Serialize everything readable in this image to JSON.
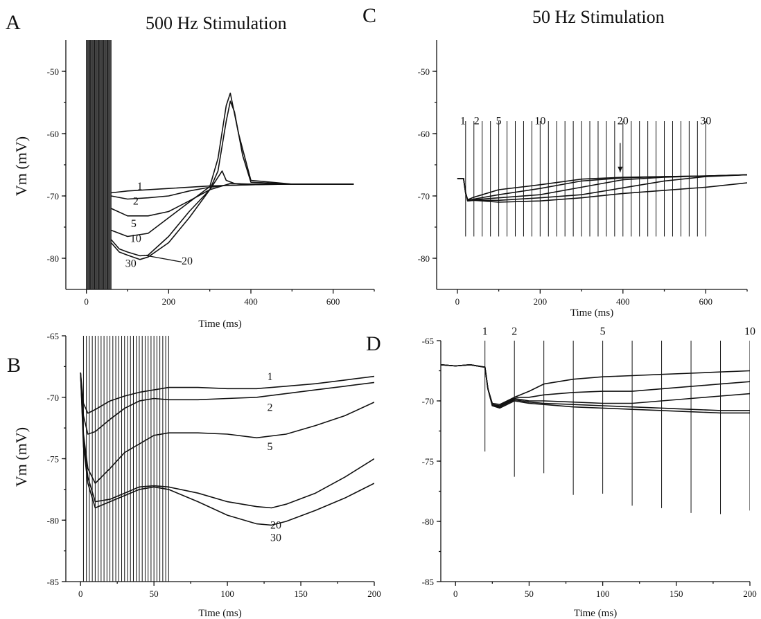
{
  "figure": {
    "column_titles": [
      "500 Hz Stimulation",
      "50 Hz Stimulation"
    ]
  },
  "chart_data": [
    {
      "panel": "A",
      "type": "line",
      "column_title": "500 Hz Stimulation",
      "xlabel": "Time (ms)",
      "ylabel": "Vm (mV)",
      "xlim": [
        -50,
        700
      ],
      "ylim": [
        -85,
        -45
      ],
      "xticks": [
        0,
        200,
        400,
        600
      ],
      "yticks": [
        -50,
        -60,
        -70,
        -80
      ],
      "stim_train": {
        "start": 0,
        "end": 60,
        "interval": 2,
        "peak": -45,
        "trough": -85
      },
      "series": [
        {
          "name": "1",
          "x": [
            60,
            100,
            200,
            300,
            400,
            500,
            650
          ],
          "y": [
            -69.5,
            -69.2,
            -68.8,
            -68.4,
            -68.2,
            -68.1,
            -68.1
          ]
        },
        {
          "name": "2",
          "x": [
            60,
            100,
            150,
            200,
            250,
            300,
            340,
            400,
            500,
            650
          ],
          "y": [
            -70.0,
            -70.5,
            -70.3,
            -70.0,
            -69.2,
            -68.6,
            -68.3,
            -68.2,
            -68.1,
            -68.1
          ]
        },
        {
          "name": "5",
          "x": [
            60,
            100,
            150,
            200,
            250,
            300,
            350,
            400,
            500,
            650
          ],
          "y": [
            -72.0,
            -73.2,
            -73.2,
            -72.5,
            -70.8,
            -69.0,
            -68.0,
            -68.1,
            -68.1,
            -68.1
          ]
        },
        {
          "name": "10",
          "x": [
            60,
            80,
            100,
            150,
            200,
            250,
            300,
            320,
            340,
            350,
            370,
            400,
            500,
            650
          ],
          "y": [
            -75.5,
            -76.0,
            -76.5,
            -76.0,
            -73.5,
            -71.0,
            -68.5,
            -64.0,
            -55.5,
            -53.5,
            -60.0,
            -67.5,
            -68.1,
            -68.1
          ]
        },
        {
          "name": "20",
          "x": [
            60,
            80,
            100,
            130,
            150,
            200,
            250,
            300,
            320,
            340,
            350,
            360,
            380,
            400,
            500,
            650
          ],
          "y": [
            -77.0,
            -78.5,
            -79.0,
            -79.6,
            -79.5,
            -76.5,
            -72.5,
            -69.0,
            -66.0,
            -58.0,
            -54.8,
            -56.5,
            -63.5,
            -67.8,
            -68.1,
            -68.1
          ]
        },
        {
          "name": "30",
          "x": [
            60,
            80,
            100,
            130,
            150,
            200,
            250,
            300,
            330,
            340,
            360,
            380,
            400,
            500,
            650
          ],
          "y": [
            -77.5,
            -79.0,
            -79.5,
            -80.2,
            -79.8,
            -77.5,
            -73.5,
            -69.0,
            -66.0,
            -67.5,
            -68.0,
            -68.1,
            -68.1,
            -68.1,
            -68.1
          ]
        }
      ],
      "series_label_positions": [
        {
          "name": "1",
          "x": 130,
          "y": -69.0
        },
        {
          "name": "2",
          "x": 120,
          "y": -71.4
        },
        {
          "name": "5",
          "x": 115,
          "y": -75.0
        },
        {
          "name": "10",
          "x": 120,
          "y": -77.4
        },
        {
          "name": "20",
          "x": 245,
          "y": -81.0
        },
        {
          "name": "30",
          "x": 108,
          "y": -81.4
        }
      ]
    },
    {
      "panel": "B",
      "type": "line",
      "xlabel": "Time (ms)",
      "ylabel": "Vm (mV)",
      "xlim": [
        -10,
        200
      ],
      "ylim": [
        -85,
        -65
      ],
      "xticks": [
        0,
        50,
        100,
        150,
        200
      ],
      "yticks": [
        -65,
        -70,
        -75,
        -80,
        -85
      ],
      "stim_train": {
        "start": 2,
        "end": 61,
        "interval": 2,
        "peak": -65,
        "trough": -85
      },
      "series": [
        {
          "name": "1",
          "x": [
            0,
            2,
            5,
            10,
            20,
            30,
            40,
            50,
            60,
            80,
            100,
            120,
            140,
            160,
            180,
            200
          ],
          "y": [
            -68.0,
            -70.5,
            -71.3,
            -71.0,
            -70.3,
            -69.9,
            -69.6,
            -69.4,
            -69.2,
            -69.2,
            -69.3,
            -69.3,
            -69.1,
            -68.9,
            -68.6,
            -68.3
          ]
        },
        {
          "name": "2",
          "x": [
            0,
            2,
            5,
            10,
            20,
            30,
            40,
            50,
            60,
            80,
            100,
            120,
            140,
            160,
            180,
            200
          ],
          "y": [
            -68.0,
            -71.5,
            -73.0,
            -72.8,
            -71.8,
            -70.9,
            -70.3,
            -70.1,
            -70.2,
            -70.2,
            -70.1,
            -70.0,
            -69.7,
            -69.4,
            -69.1,
            -68.8
          ]
        },
        {
          "name": "5",
          "x": [
            0,
            2,
            5,
            10,
            20,
            30,
            40,
            50,
            60,
            80,
            100,
            120,
            140,
            160,
            180,
            200
          ],
          "y": [
            -68.0,
            -73.0,
            -75.8,
            -77.0,
            -75.8,
            -74.5,
            -73.8,
            -73.1,
            -72.9,
            -72.9,
            -73.0,
            -73.3,
            -73.0,
            -72.3,
            -71.5,
            -70.4
          ]
        },
        {
          "name": "20",
          "x": [
            0,
            2,
            5,
            10,
            20,
            30,
            40,
            50,
            60,
            80,
            100,
            120,
            130,
            140,
            160,
            180,
            200
          ],
          "y": [
            -68.0,
            -73.5,
            -76.5,
            -78.5,
            -78.3,
            -77.8,
            -77.3,
            -77.2,
            -77.3,
            -77.8,
            -78.5,
            -78.9,
            -79.0,
            -78.7,
            -77.8,
            -76.5,
            -75.0
          ]
        },
        {
          "name": "30",
          "x": [
            0,
            2,
            5,
            10,
            20,
            30,
            40,
            50,
            60,
            80,
            100,
            120,
            130,
            140,
            160,
            180,
            200
          ],
          "y": [
            -68.0,
            -74.0,
            -77.0,
            -79.0,
            -78.5,
            -78.0,
            -77.5,
            -77.3,
            -77.5,
            -78.5,
            -79.6,
            -80.3,
            -80.4,
            -80.1,
            -79.2,
            -78.2,
            -77.0
          ]
        }
      ],
      "series_label_positions": [
        {
          "name": "1",
          "x": 129,
          "y": -68.6
        },
        {
          "name": "2",
          "x": 129,
          "y": -71.1
        },
        {
          "name": "5",
          "x": 129,
          "y": -74.3
        },
        {
          "name": "20",
          "x": 133,
          "y": -80.7
        },
        {
          "name": "30",
          "x": 133,
          "y": -81.7
        }
      ]
    },
    {
      "panel": "C",
      "type": "line",
      "column_title": "50 Hz Stimulation",
      "xlabel": "Time (ms)",
      "ylabel": "",
      "xlim": [
        -50,
        700
      ],
      "ylim": [
        -85,
        -45
      ],
      "xticks": [
        0,
        200,
        400,
        600
      ],
      "yticks": [
        -50,
        -60,
        -70,
        -80
      ],
      "stim_train": {
        "start": 20,
        "end": 600,
        "interval": 20,
        "peak": -58,
        "trough": -76.5
      },
      "arrow": {
        "label": "20",
        "x": 400,
        "y_from": -61.5,
        "y_to": -66.2
      },
      "series": [
        {
          "name": "trace-1",
          "x": [
            0,
            15,
            20,
            25,
            40,
            100,
            200,
            300,
            400,
            500,
            600,
            700
          ],
          "y": [
            -67.2,
            -67.2,
            -69.5,
            -70.6,
            -70.2,
            -69.0,
            -68.2,
            -67.3,
            -67.0,
            -66.9,
            -66.8,
            -66.6
          ]
        },
        {
          "name": "trace-2",
          "x": [
            0,
            15,
            20,
            25,
            40,
            100,
            200,
            300,
            400,
            500,
            600,
            700
          ],
          "y": [
            -67.2,
            -67.2,
            -69.5,
            -70.7,
            -70.5,
            -69.8,
            -68.8,
            -67.6,
            -67.1,
            -66.9,
            -66.8,
            -66.6
          ]
        },
        {
          "name": "trace-5",
          "x": [
            0,
            15,
            20,
            25,
            40,
            100,
            200,
            300,
            400,
            500,
            600,
            700
          ],
          "y": [
            -67.2,
            -67.2,
            -69.5,
            -70.8,
            -70.6,
            -70.3,
            -69.8,
            -68.6,
            -67.4,
            -67.0,
            -66.8,
            -66.6
          ]
        },
        {
          "name": "trace-10",
          "x": [
            0,
            15,
            20,
            25,
            40,
            100,
            200,
            300,
            400,
            500,
            600,
            700
          ],
          "y": [
            -67.2,
            -67.2,
            -69.5,
            -70.8,
            -70.7,
            -70.7,
            -70.3,
            -69.8,
            -68.7,
            -67.6,
            -66.9,
            -66.6
          ]
        },
        {
          "name": "trace-20",
          "x": [
            0,
            15,
            20,
            25,
            40,
            100,
            200,
            300,
            400,
            500,
            600,
            700
          ],
          "y": [
            -67.2,
            -67.2,
            -69.5,
            -70.8,
            -70.7,
            -71.0,
            -70.8,
            -70.3,
            -69.6,
            -69.1,
            -68.6,
            -67.9
          ]
        }
      ],
      "stim_labels": [
        {
          "label": "1",
          "x": 20
        },
        {
          "label": "2",
          "x": 40
        },
        {
          "label": "5",
          "x": 100
        },
        {
          "label": "10",
          "x": 200
        },
        {
          "label": "20",
          "x": 400
        },
        {
          "label": "30",
          "x": 600
        }
      ],
      "stim_label_y": -58.5
    },
    {
      "panel": "D",
      "type": "line",
      "xlabel": "Time (ms)",
      "ylabel": "",
      "xlim": [
        -10,
        200
      ],
      "ylim": [
        -85,
        -65
      ],
      "xticks": [
        0,
        50,
        100,
        150,
        200
      ],
      "yticks": [
        -65,
        -70,
        -75,
        -80,
        -85
      ],
      "stim_train": {
        "start": 20,
        "end": 200,
        "interval": 20,
        "peak": -65,
        "trough_values": [
          -74.2,
          -76.3,
          -76.0,
          -77.8,
          -77.7,
          -78.7,
          -78.9,
          -79.3,
          -79.4,
          -79.1
        ]
      },
      "series": [
        {
          "name": "trace-1",
          "x": [
            -10,
            0,
            10,
            20,
            22,
            25,
            30,
            40,
            50,
            60,
            80,
            100,
            120,
            140,
            160,
            180,
            200
          ],
          "y": [
            -67.0,
            -67.1,
            -67.0,
            -67.2,
            -69.0,
            -70.2,
            -70.3,
            -69.7,
            -69.2,
            -68.6,
            -68.2,
            -68.0,
            -67.9,
            -67.8,
            -67.7,
            -67.6,
            -67.5
          ]
        },
        {
          "name": "trace-2",
          "x": [
            -10,
            0,
            10,
            20,
            22,
            25,
            30,
            40,
            50,
            60,
            80,
            100,
            120,
            140,
            160,
            180,
            200
          ],
          "y": [
            -67.0,
            -67.1,
            -67.0,
            -67.2,
            -69.0,
            -70.3,
            -70.4,
            -69.7,
            -69.7,
            -69.5,
            -69.3,
            -69.2,
            -69.2,
            -69.0,
            -68.8,
            -68.6,
            -68.4
          ]
        },
        {
          "name": "trace-5",
          "x": [
            -10,
            0,
            10,
            20,
            22,
            25,
            30,
            40,
            50,
            60,
            80,
            100,
            120,
            140,
            160,
            180,
            200
          ],
          "y": [
            -67.0,
            -67.1,
            -67.0,
            -67.2,
            -69.0,
            -70.3,
            -70.5,
            -69.8,
            -70.0,
            -70.0,
            -70.1,
            -70.2,
            -70.2,
            -70.0,
            -69.8,
            -69.6,
            -69.4
          ]
        },
        {
          "name": "trace-10",
          "x": [
            -10,
            0,
            10,
            20,
            22,
            25,
            30,
            40,
            50,
            60,
            80,
            100,
            120,
            140,
            160,
            180,
            200
          ],
          "y": [
            -67.0,
            -67.1,
            -67.0,
            -67.2,
            -69.0,
            -70.4,
            -70.5,
            -69.9,
            -70.1,
            -70.2,
            -70.3,
            -70.4,
            -70.5,
            -70.6,
            -70.7,
            -70.8,
            -70.8
          ]
        },
        {
          "name": "trace-20",
          "x": [
            -10,
            0,
            10,
            20,
            22,
            25,
            30,
            40,
            50,
            60,
            80,
            100,
            120,
            140,
            160,
            180,
            200
          ],
          "y": [
            -67.0,
            -67.1,
            -67.0,
            -67.2,
            -69.0,
            -70.4,
            -70.6,
            -70.0,
            -70.2,
            -70.3,
            -70.5,
            -70.6,
            -70.7,
            -70.8,
            -70.9,
            -71.0,
            -71.0
          ]
        }
      ],
      "stim_labels": [
        {
          "label": "1",
          "x": 20
        },
        {
          "label": "2",
          "x": 40
        },
        {
          "label": "5",
          "x": 100
        },
        {
          "label": "10",
          "x": 200
        }
      ],
      "stim_label_y": -64.5
    }
  ]
}
